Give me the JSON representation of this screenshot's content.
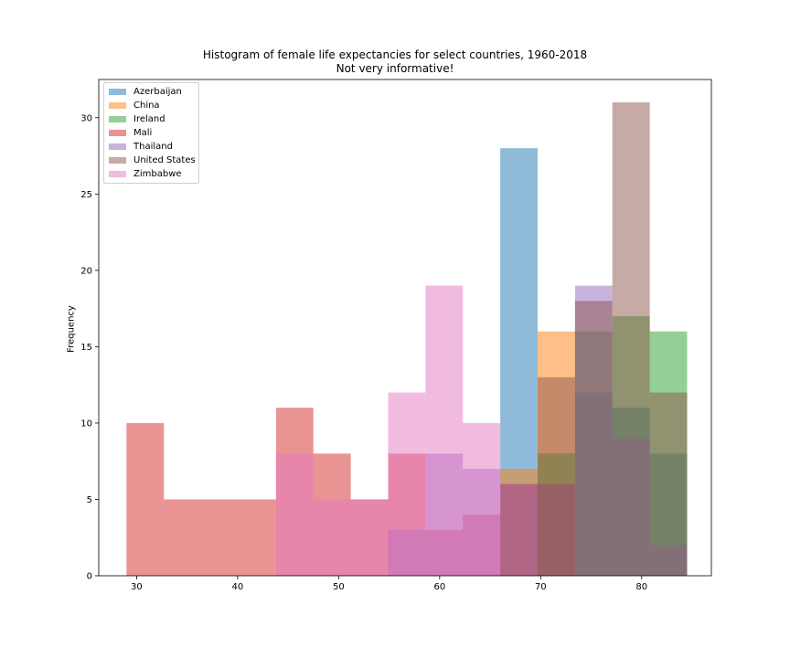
{
  "chart_data": {
    "type": "bar",
    "title": "Histogram of female life expectancies for select countries, 1960-2018",
    "subtitle": "Not very informative!",
    "xlabel": "",
    "ylabel": "Frequency",
    "xlim": [
      26.25,
      86.9
    ],
    "ylim": [
      0,
      32.5
    ],
    "xticks": [
      30,
      40,
      50,
      60,
      70,
      80
    ],
    "yticks": [
      0,
      5,
      10,
      15,
      20,
      25,
      30
    ],
    "bin_edges": [
      29.0,
      32.7,
      36.4,
      40.1,
      43.8,
      47.5,
      51.2,
      54.9,
      58.6,
      62.3,
      66.0,
      69.7,
      73.4,
      77.1,
      80.8,
      84.5
    ],
    "legend_position": "upper left",
    "series": [
      {
        "name": "Azerbaijan",
        "color": "#1f77b4",
        "values": [
          0,
          0,
          0,
          0,
          0,
          0,
          0,
          0,
          0,
          0,
          28,
          0,
          12,
          11,
          8
        ]
      },
      {
        "name": "China",
        "color": "#ff7f0e",
        "values": [
          0,
          0,
          0,
          0,
          0,
          0,
          0,
          0,
          0,
          0,
          7,
          16,
          0,
          0,
          0
        ]
      },
      {
        "name": "Ireland",
        "color": "#2ca02c",
        "values": [
          0,
          0,
          0,
          0,
          0,
          0,
          0,
          0,
          0,
          0,
          0,
          8,
          16,
          17,
          16
        ]
      },
      {
        "name": "Mali",
        "color": "#d62728",
        "values": [
          10,
          5,
          5,
          5,
          11,
          8,
          5,
          8,
          3,
          4,
          6,
          6,
          0,
          0,
          0
        ]
      },
      {
        "name": "Thailand",
        "color": "#9467bd",
        "values": [
          0,
          0,
          0,
          0,
          0,
          0,
          0,
          3,
          8,
          7,
          6,
          6,
          19,
          9,
          2
        ]
      },
      {
        "name": "United States",
        "color": "#8c564b",
        "values": [
          0,
          0,
          0,
          0,
          0,
          0,
          0,
          0,
          0,
          0,
          0,
          13,
          18,
          31,
          12
        ]
      },
      {
        "name": "Zimbabwe",
        "color": "#e377c2",
        "values": [
          0,
          0,
          0,
          0,
          8,
          5,
          5,
          12,
          19,
          10,
          0,
          0,
          0,
          0,
          0
        ]
      }
    ]
  }
}
